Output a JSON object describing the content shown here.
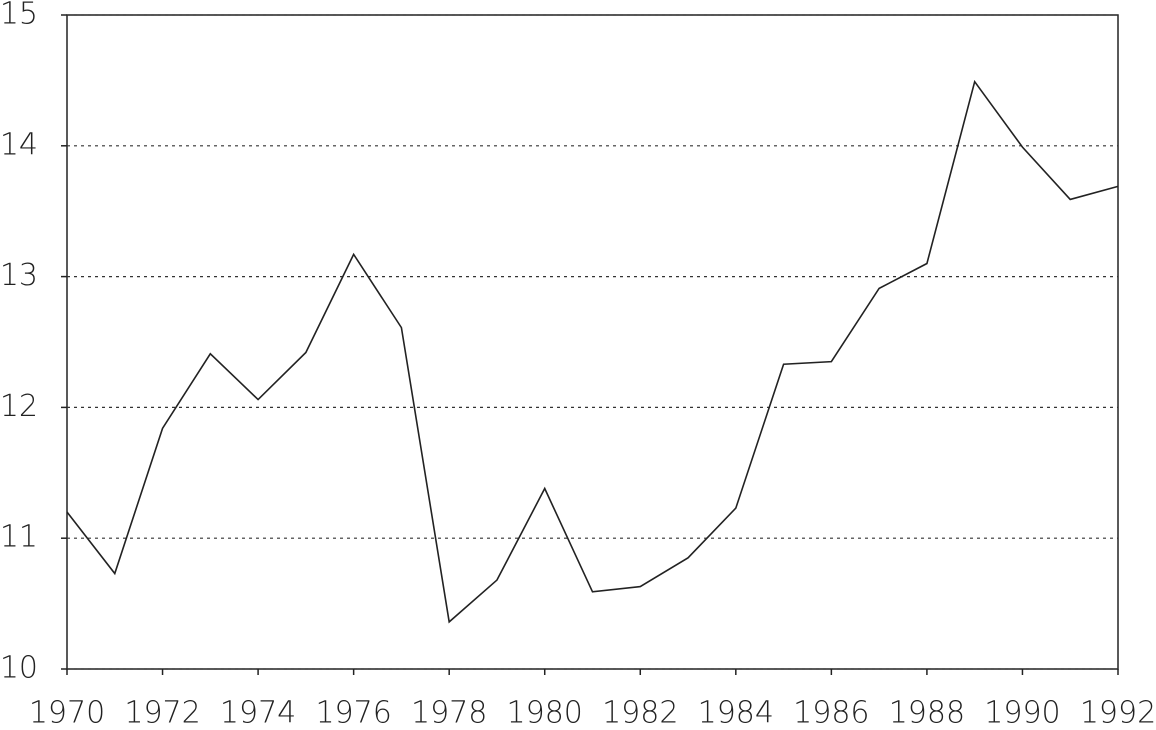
{
  "chart_data": {
    "type": "line",
    "x": [
      1970,
      1971,
      1972,
      1973,
      1974,
      1975,
      1976,
      1977,
      1978,
      1979,
      1980,
      1981,
      1982,
      1983,
      1984,
      1985,
      1986,
      1987,
      1988,
      1989,
      1990,
      1991,
      1992
    ],
    "series": [
      {
        "color": "#222222",
        "values": [
          11.2,
          10.73,
          11.84,
          12.41,
          12.06,
          12.42,
          13.17,
          12.61,
          10.36,
          10.68,
          11.38,
          10.59,
          10.63,
          10.85,
          11.23,
          12.33,
          12.35,
          12.91,
          13.1,
          14.49,
          13.99,
          13.59,
          13.69
        ]
      }
    ],
    "xlim": [
      1970,
      1992
    ],
    "xticks": [
      1970,
      1972,
      1974,
      1976,
      1978,
      1980,
      1982,
      1984,
      1986,
      1988,
      1990,
      1992
    ],
    "ylim": [
      10,
      15
    ],
    "yticks": [
      10,
      11,
      12,
      13,
      14,
      15
    ],
    "grid": true
  }
}
